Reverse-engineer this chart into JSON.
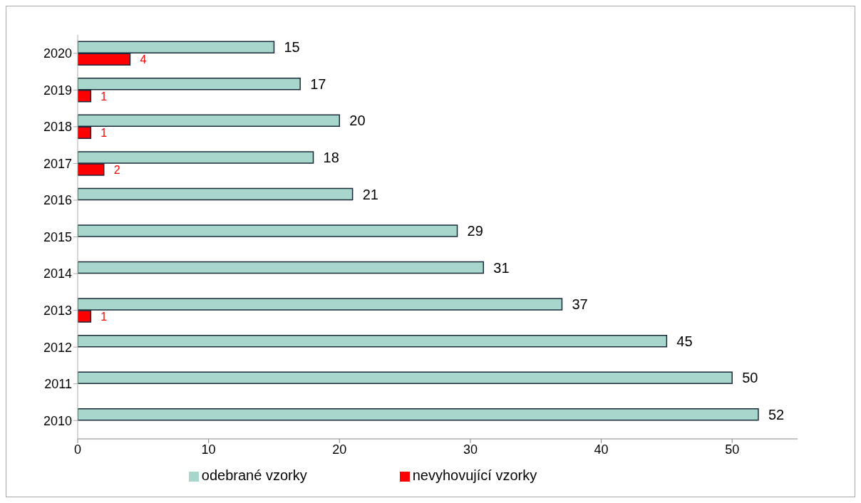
{
  "chart_data": {
    "type": "bar",
    "orientation": "horizontal",
    "categories": [
      "2020",
      "2019",
      "2018",
      "2017",
      "2016",
      "2015",
      "2014",
      "2013",
      "2012",
      "2011",
      "2010"
    ],
    "series": [
      {
        "name": "odebrané vzorky",
        "color": "#a6d6cc",
        "values": [
          15,
          17,
          20,
          18,
          21,
          29,
          31,
          37,
          45,
          50,
          52
        ]
      },
      {
        "name": "nevyhovující vzorky",
        "color": "#ff0000",
        "values": [
          4,
          1,
          1,
          2,
          null,
          null,
          null,
          1,
          null,
          null,
          null
        ]
      }
    ],
    "xlim": [
      0,
      55
    ],
    "xticks": [
      0,
      10,
      20,
      30,
      40,
      50
    ],
    "grid": false,
    "legend": "bottom",
    "data_labels": true
  }
}
